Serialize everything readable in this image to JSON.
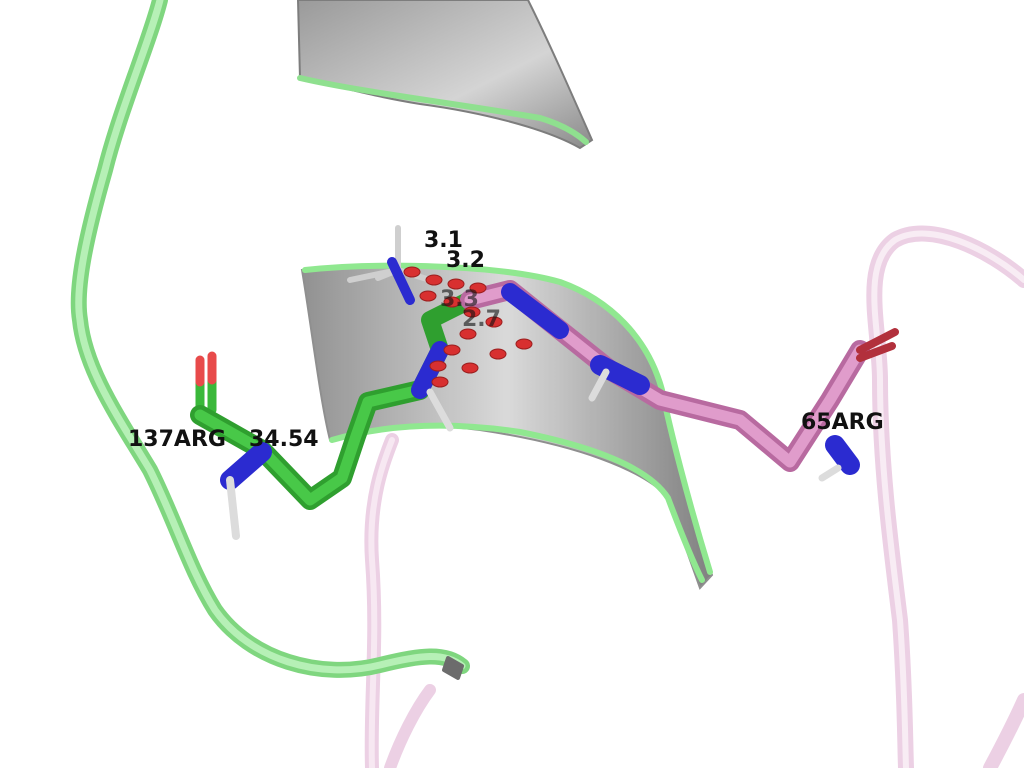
{
  "viewer": {
    "labels": {
      "residue_a": "137ARG",
      "residue_a_value": "34.54",
      "residue_b": "65ARG",
      "distances": [
        "3.1",
        "3.2",
        "3.3",
        "2.7"
      ]
    },
    "colors": {
      "background": "#ffffff",
      "chain_a_ribbon": "#90e890",
      "chain_b_ribbon": "#f2c6e2",
      "sheet_fill": "#a9a9a9",
      "carbon_a": "#3ab83a",
      "carbon_b": "#d98cbf",
      "nitrogen": "#2b2bd0",
      "oxygen": "#e84a4a",
      "hydrogen": "#e6e6e6",
      "contact_dashes": "#d83030"
    }
  }
}
